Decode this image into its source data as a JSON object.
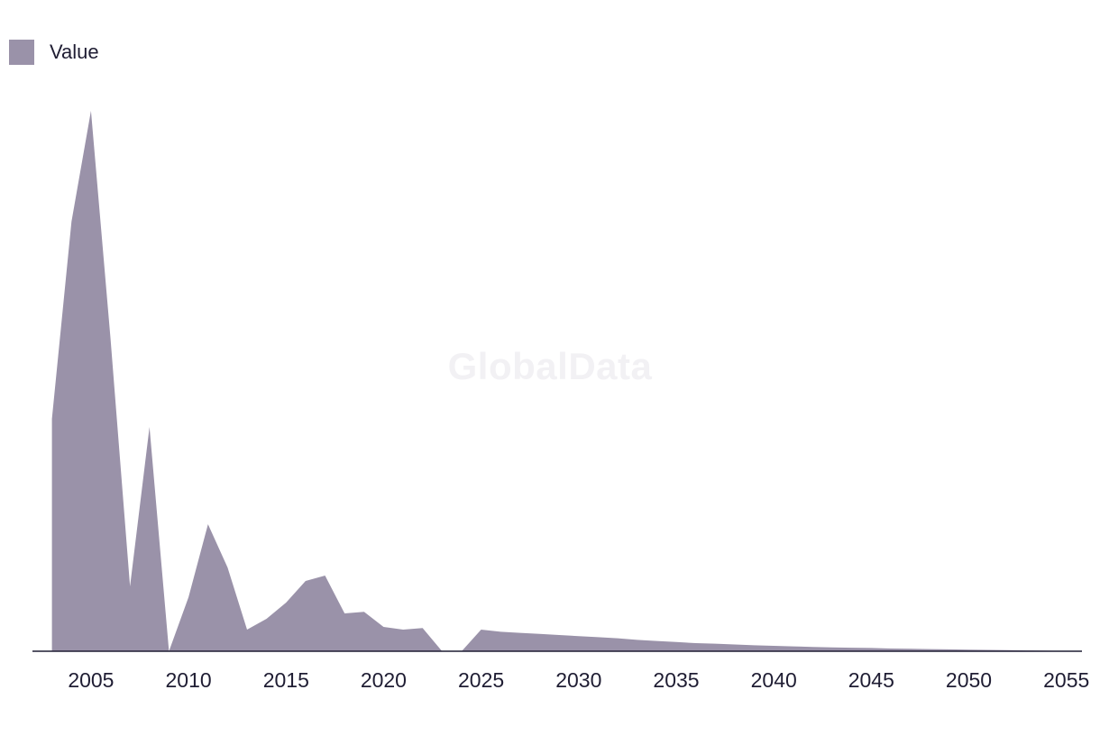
{
  "watermark": "GlobalData",
  "colors": {
    "area": "#9a92a9",
    "axis": "#1f1d33",
    "text": "#1f1d33"
  },
  "chart_data": {
    "type": "area",
    "title": "",
    "xlabel": "",
    "ylabel": "",
    "legend_position": "top-left",
    "grid": false,
    "xlim": [
      2002,
      2055.8
    ],
    "ylim": [
      0,
      100
    ],
    "x_ticks": [
      2005,
      2010,
      2015,
      2020,
      2025,
      2030,
      2035,
      2040,
      2045,
      2050,
      2055
    ],
    "x": [
      2003,
      2004,
      2005,
      2006,
      2007,
      2008,
      2009,
      2010,
      2011,
      2012,
      2013,
      2014,
      2015,
      2016,
      2017,
      2018,
      2019,
      2020,
      2021,
      2022,
      2023,
      2024,
      2025,
      2026,
      2027,
      2028,
      2029,
      2030,
      2031,
      2032,
      2033,
      2034,
      2035,
      2036,
      2037,
      2038,
      2039,
      2040,
      2041,
      2042,
      2043,
      2044,
      2045,
      2046,
      2047,
      2048,
      2049,
      2050,
      2051,
      2052,
      2053,
      2054,
      2055
    ],
    "series": [
      {
        "name": "Value",
        "values": [
          43.0,
          79.5,
          100.0,
          58.0,
          12.0,
          41.5,
          0.0,
          10.0,
          23.5,
          15.5,
          4.0,
          6.0,
          9.0,
          13.0,
          14.0,
          7.0,
          7.3,
          4.5,
          4.0,
          4.3,
          0.0,
          0.0,
          4.0,
          3.6,
          3.4,
          3.2,
          3.0,
          2.8,
          2.6,
          2.4,
          2.1,
          1.9,
          1.7,
          1.5,
          1.4,
          1.25,
          1.1,
          1.0,
          0.9,
          0.8,
          0.7,
          0.65,
          0.6,
          0.5,
          0.45,
          0.4,
          0.35,
          0.3,
          0.25,
          0.2,
          0.15,
          0.1,
          0.05
        ]
      }
    ]
  }
}
